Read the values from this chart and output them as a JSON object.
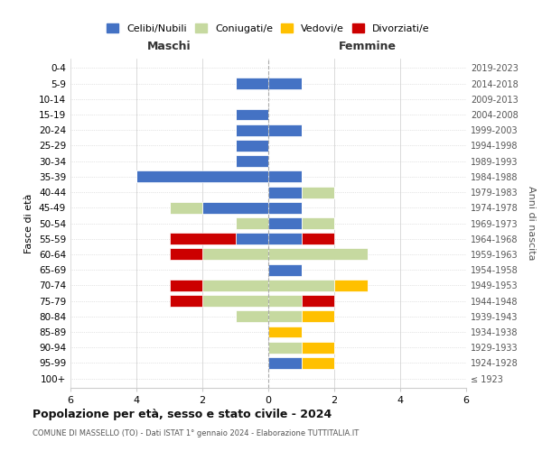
{
  "age_groups": [
    "100+",
    "95-99",
    "90-94",
    "85-89",
    "80-84",
    "75-79",
    "70-74",
    "65-69",
    "60-64",
    "55-59",
    "50-54",
    "45-49",
    "40-44",
    "35-39",
    "30-34",
    "25-29",
    "20-24",
    "15-19",
    "10-14",
    "5-9",
    "0-4"
  ],
  "birth_years": [
    "≤ 1923",
    "1924-1928",
    "1929-1933",
    "1934-1938",
    "1939-1943",
    "1944-1948",
    "1949-1953",
    "1954-1958",
    "1959-1963",
    "1964-1968",
    "1969-1973",
    "1974-1978",
    "1979-1983",
    "1984-1988",
    "1989-1993",
    "1994-1998",
    "1999-2003",
    "2004-2008",
    "2009-2013",
    "2014-2018",
    "2019-2023"
  ],
  "colors": {
    "celibi": "#4472c4",
    "coniugati": "#c6d9a0",
    "vedovi": "#ffc000",
    "divorziati": "#cc0000"
  },
  "maschi": {
    "celibi": [
      0,
      0,
      0,
      0,
      0,
      0,
      0,
      0,
      0,
      1,
      0,
      2,
      0,
      4,
      1,
      1,
      1,
      1,
      0,
      1,
      0
    ],
    "coniugati": [
      0,
      0,
      0,
      0,
      1,
      2,
      2,
      0,
      2,
      0,
      1,
      1,
      0,
      0,
      0,
      0,
      0,
      0,
      0,
      0,
      0
    ],
    "vedovi": [
      0,
      0,
      0,
      0,
      0,
      0,
      0,
      0,
      0,
      0,
      0,
      0,
      0,
      0,
      0,
      0,
      0,
      0,
      0,
      0,
      0
    ],
    "divorziati": [
      0,
      0,
      0,
      0,
      0,
      1,
      1,
      0,
      1,
      2,
      0,
      0,
      0,
      0,
      0,
      0,
      0,
      0,
      0,
      0,
      0
    ]
  },
  "femmine": {
    "celibi": [
      0,
      1,
      0,
      0,
      0,
      0,
      0,
      1,
      0,
      1,
      1,
      1,
      1,
      1,
      0,
      0,
      1,
      0,
      0,
      1,
      0
    ],
    "coniugati": [
      0,
      0,
      1,
      0,
      1,
      1,
      2,
      0,
      3,
      0,
      1,
      0,
      1,
      0,
      0,
      0,
      0,
      0,
      0,
      0,
      0
    ],
    "vedovi": [
      0,
      1,
      1,
      1,
      1,
      0,
      1,
      0,
      0,
      0,
      0,
      0,
      0,
      0,
      0,
      0,
      0,
      0,
      0,
      0,
      0
    ],
    "divorziati": [
      0,
      0,
      0,
      0,
      0,
      1,
      0,
      0,
      0,
      1,
      0,
      0,
      0,
      0,
      0,
      0,
      0,
      0,
      0,
      0,
      0
    ]
  },
  "xlim": 6,
  "title": "Popolazione per età, sesso e stato civile - 2024",
  "subtitle": "COMUNE DI MASSELLO (TO) - Dati ISTAT 1° gennaio 2024 - Elaborazione TUTTITALIA.IT",
  "ylabel_left": "Fasce di età",
  "ylabel_right": "Anni di nascita",
  "xlabel_maschi": "Maschi",
  "xlabel_femmine": "Femmine",
  "legend_labels": [
    "Celibi/Nubili",
    "Coniugati/e",
    "Vedovi/e",
    "Divorziati/e"
  ],
  "background_color": "#ffffff",
  "grid_color": "#cccccc"
}
